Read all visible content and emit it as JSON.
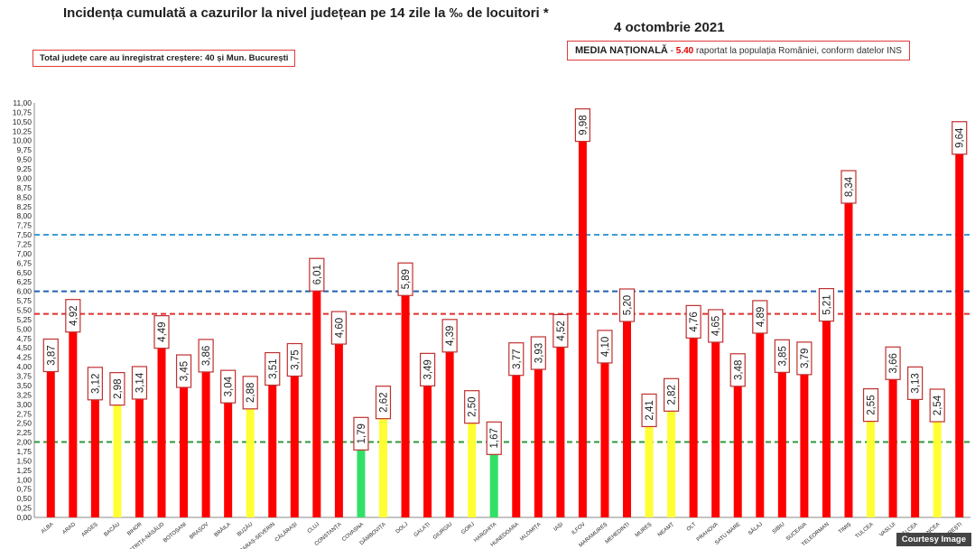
{
  "header": {
    "title": "Incidența cumulată a cazurilor la nivel județean pe 14 zile la ‰ de locuitori *",
    "date": "4 octombrie 2021"
  },
  "info_left": "Total județe care au înregistrat creștere:  40 și Mun. București",
  "info_right": {
    "label": "MEDIA NAȚIONALĂ",
    "dash": " - ",
    "value": "5.40",
    "text": " raportat la populația României, conform datelor INS"
  },
  "credit": "Courtesy Image",
  "colors": {
    "red": "#ff0000",
    "yellow": "#ffff33",
    "green": "#33e066",
    "arrow": "#a0221a",
    "line_blue_light": "#3d9bd6",
    "line_blue_dark": "#2060b0",
    "line_red": "#e03030",
    "line_green": "#2a9a3a"
  },
  "chart_data": {
    "type": "bar",
    "title": "Incidența cumulată a cazurilor la nivel județean pe 14 zile la ‰ de locuitori *",
    "xlabel": "",
    "ylabel": "",
    "ylim": [
      0,
      11
    ],
    "ytick_step": 0.25,
    "ytick_labels": [
      "0,00",
      "0,25",
      "0,50",
      "0,75",
      "1,00",
      "1,25",
      "1,50",
      "1,75",
      "2,00",
      "2,25",
      "2,50",
      "2,75",
      "3,00",
      "3,25",
      "3,50",
      "3,75",
      "4,00",
      "4,25",
      "4,50",
      "4,75",
      "5,00",
      "5,25",
      "5,50",
      "5,75",
      "6,00",
      "6,25",
      "6,50",
      "6,75",
      "7,00",
      "7,25",
      "7,50",
      "7,75",
      "8,00",
      "8,25",
      "8,50",
      "8,75",
      "9,00",
      "9,25",
      "9,50",
      "9,75",
      "10,00",
      "10,25",
      "10,50",
      "10,75",
      "11,00"
    ],
    "grid": false,
    "reference_lines": [
      {
        "value": 7.5,
        "style": "dashed",
        "color": "line_blue_light"
      },
      {
        "value": 6.0,
        "style": "dashed",
        "color": "line_blue_dark"
      },
      {
        "value": 5.4,
        "style": "dashed",
        "color": "line_red"
      },
      {
        "value": 2.0,
        "style": "dashed",
        "color": "line_green"
      }
    ],
    "categories": [
      "ALBA",
      "ARAD",
      "ARGEȘ",
      "BACĂU",
      "BIHOR",
      "BISTRIȚA-NĂSĂUD",
      "BOTOȘANI",
      "BRAȘOV",
      "BRĂILA",
      "BUZĂU",
      "CARAȘ-SEVERIN",
      "CĂLĂRAȘI",
      "CLUJ",
      "CONSTANȚA",
      "COVASNA",
      "DÂMBOVIȚA",
      "DOLJ",
      "GALAȚI",
      "GIURGIU",
      "GORJ",
      "HARGHITA",
      "HUNEDOARA",
      "IALOMIȚA",
      "IAȘI",
      "ILFOV",
      "MARAMUREȘ",
      "MEHEDINȚI",
      "MUREȘ",
      "NEAMȚ",
      "OLT",
      "PRAHOVA",
      "SATU MARE",
      "SĂLAJ",
      "SIBIU",
      "SUCEAVA",
      "TELEORMAN",
      "TIMIȘ",
      "TULCEA",
      "VASLUI",
      "VÂLCEA",
      "VRANCEA",
      "BUCUREȘTI"
    ],
    "values": [
      3.87,
      4.92,
      3.12,
      2.98,
      3.14,
      4.49,
      3.45,
      3.86,
      3.04,
      2.88,
      3.51,
      3.75,
      6.01,
      4.6,
      1.79,
      2.62,
      5.89,
      3.49,
      4.39,
      2.5,
      1.67,
      3.77,
      3.93,
      4.52,
      9.98,
      4.1,
      5.2,
      2.41,
      2.82,
      4.76,
      4.65,
      3.48,
      4.89,
      3.85,
      3.79,
      5.21,
      8.34,
      2.55,
      3.66,
      3.13,
      2.54,
      9.64
    ],
    "value_labels": [
      "3,87",
      "4,92",
      "3,12",
      "2,98",
      "3,14",
      "4,49",
      "3,45",
      "3,86",
      "3,04",
      "2,88",
      "3,51",
      "3,75",
      "6,01",
      "4,60",
      "1,79",
      "2,62",
      "5,89",
      "3,49",
      "4,39",
      "2,50",
      "1,67",
      "3,77",
      "3,93",
      "4,52",
      "9,98",
      "4,10",
      "5,20",
      "2,41",
      "2,82",
      "4,76",
      "4,65",
      "3,48",
      "4,89",
      "3,85",
      "3,79",
      "5,21",
      "8,34",
      "2,55",
      "3,66",
      "3,13",
      "2,54",
      "9,64"
    ],
    "increase": [
      true,
      true,
      true,
      true,
      true,
      true,
      true,
      true,
      true,
      true,
      true,
      true,
      true,
      true,
      true,
      true,
      true,
      true,
      true,
      true,
      true,
      true,
      true,
      true,
      true,
      true,
      true,
      true,
      true,
      true,
      true,
      false,
      true,
      true,
      true,
      true,
      true,
      true,
      true,
      true,
      true,
      true
    ],
    "bar_colors": [
      "red",
      "red",
      "red",
      "yellow",
      "red",
      "red",
      "red",
      "red",
      "red",
      "yellow",
      "red",
      "red",
      "red",
      "red",
      "green",
      "yellow",
      "red",
      "red",
      "red",
      "yellow",
      "green",
      "red",
      "red",
      "red",
      "red",
      "red",
      "red",
      "yellow",
      "yellow",
      "red",
      "red",
      "red",
      "red",
      "red",
      "red",
      "red",
      "red",
      "yellow",
      "red",
      "red",
      "yellow",
      "red"
    ]
  }
}
